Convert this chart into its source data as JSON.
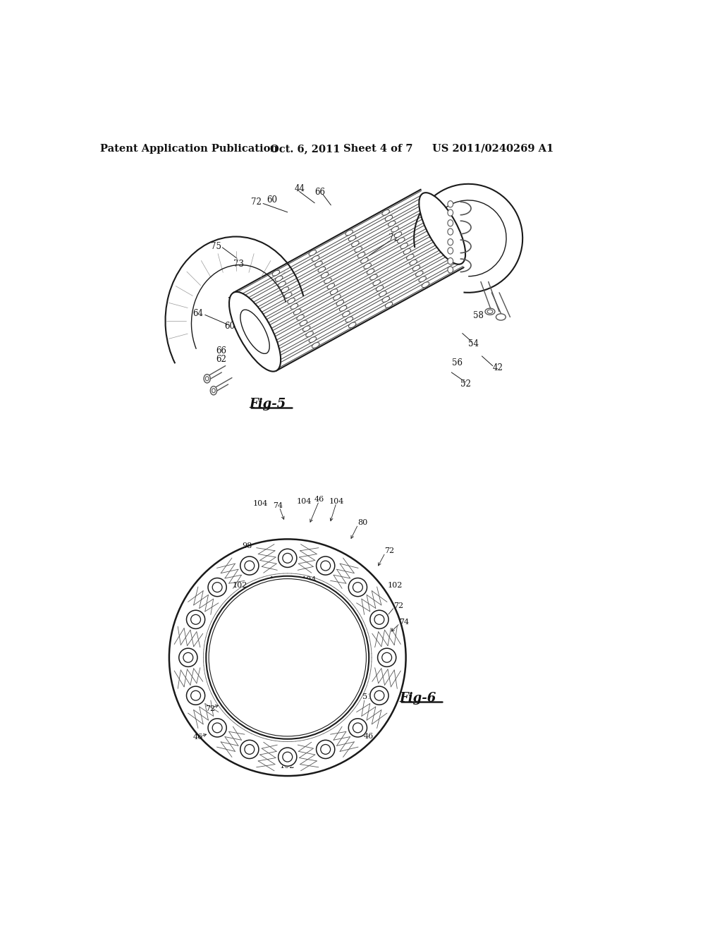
{
  "background_color": "#ffffff",
  "header_left": "Patent Application Publication",
  "header_mid1": "Oct. 6, 2011",
  "header_mid2": "Sheet 4 of 7",
  "header_right": "US 2011/0240269 A1",
  "fig5_label": "Fig-5",
  "fig6_label": "Fig-6",
  "lc": "#1a1a1a",
  "tc": "#111111"
}
